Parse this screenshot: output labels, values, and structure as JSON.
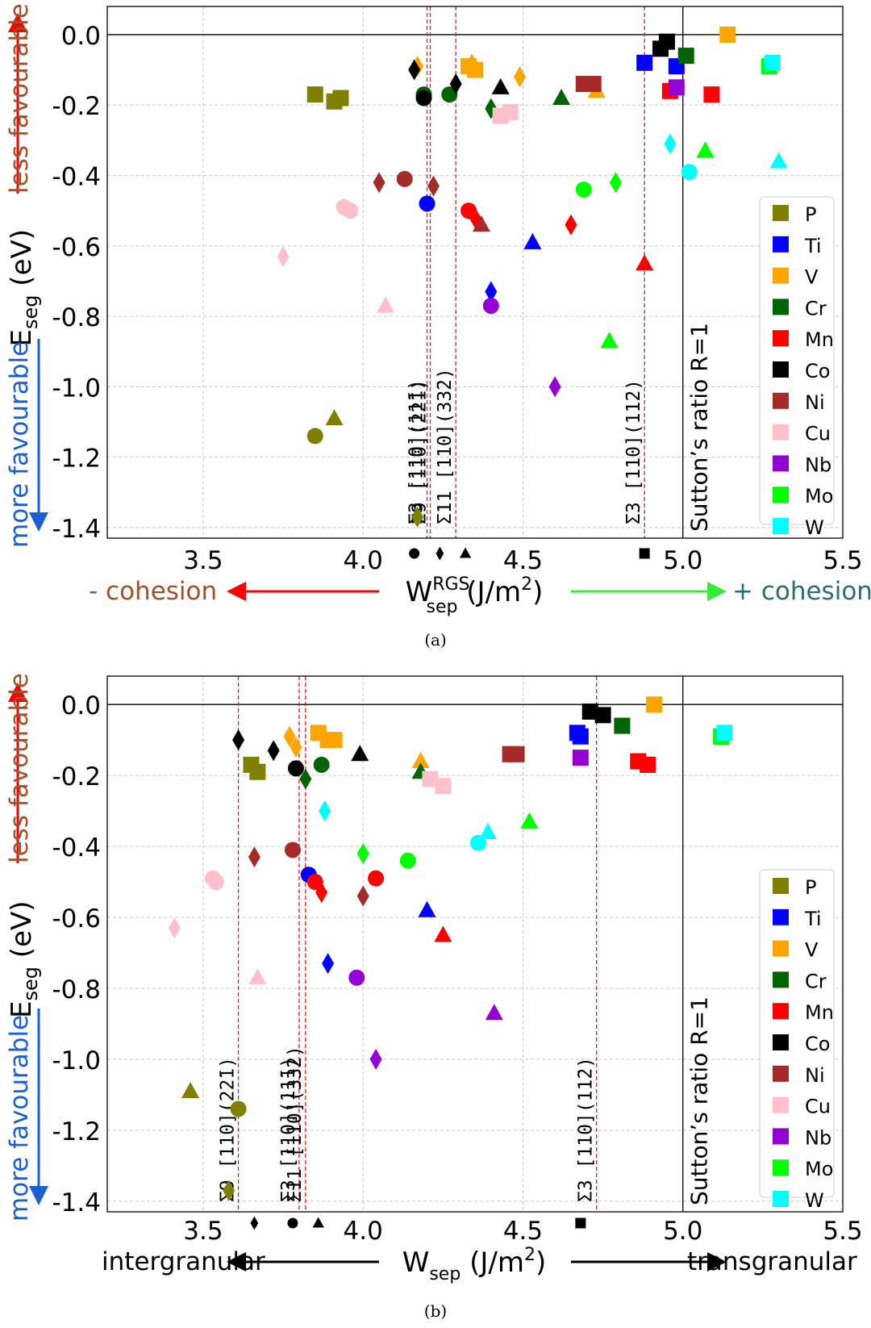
{
  "colors": {
    "P": "#808000",
    "Ti": "#0000ff",
    "V": "#ffa500",
    "Cr": "#006400",
    "Mn": "#ff0000",
    "Co": "#000000",
    "Ni": "#a52a2a",
    "Cu": "#ffc0cb",
    "Nb": "#9400d3",
    "Mo": "#00ff00",
    "W": "#00ffff"
  },
  "legend_items": [
    "P",
    "Ti",
    "V",
    "Cr",
    "Mn",
    "Co",
    "Ni",
    "Cu",
    "Nb",
    "Mo",
    "W"
  ],
  "chart_data": [
    {
      "type": "scatter",
      "caption": "(a)",
      "ylabel_main": "E",
      "ylabel_sub": "seg",
      "ylabel_unit": " (eV)",
      "xlabel_main": "W",
      "xlabel_sup": "RGS",
      "xlabel_sub": "sep",
      "xlabel_unit": " (J/m",
      "xlabel_pow": "2",
      "xlabel_close": ")",
      "left_arrow_label": "- cohesion",
      "right_arrow_label": "+ cohesion",
      "y_up_label": "less favourable",
      "y_down_label": "more favourable",
      "xlim": [
        3.2,
        5.5
      ],
      "ylim": [
        -1.43,
        0.08
      ],
      "xticks": [
        "3.5",
        "4.0",
        "4.5",
        "5.0",
        "5.5"
      ],
      "yticks": [
        "0.0",
        "-0.2",
        "-0.4",
        "-0.6",
        "-0.8",
        "-1.0",
        "-1.2",
        "-1.4"
      ],
      "sutton_x": 5.0,
      "sutton_label": "Sutton’s ratio R=1",
      "gb_lines": [
        {
          "x": 4.2,
          "label": "Σ3 [110](11̄1)",
          "marker": "circle",
          "marker_x": 4.16
        },
        {
          "x": 4.21,
          "label": "Σ9 [110](22̄1)",
          "marker": "diamond",
          "marker_x": 4.24
        },
        {
          "x": 4.29,
          "label": "Σ11 [110](33̄2)",
          "marker": "triangle",
          "marker_x": 4.32
        },
        {
          "x": 4.88,
          "label": "Σ3 [110](11̄2)",
          "marker": "square",
          "marker_x": 4.88
        }
      ],
      "points": [
        [
          "P",
          "square",
          3.85,
          -0.17
        ],
        [
          "P",
          "square",
          3.91,
          -0.19
        ],
        [
          "P",
          "square",
          3.93,
          -0.18
        ],
        [
          "P",
          "circle",
          3.85,
          -1.14
        ],
        [
          "P",
          "triangle",
          3.91,
          -1.09
        ],
        [
          "P",
          "diamond",
          4.17,
          -1.37
        ],
        [
          "Ti",
          "circle",
          4.2,
          -0.48
        ],
        [
          "Ti",
          "triangle",
          4.53,
          -0.59
        ],
        [
          "Ti",
          "diamond",
          4.4,
          -0.73
        ],
        [
          "Ti",
          "square",
          4.88,
          -0.08
        ],
        [
          "Ti",
          "square",
          4.98,
          -0.09
        ],
        [
          "V",
          "diamond",
          4.17,
          -0.09
        ],
        [
          "V",
          "square",
          4.33,
          -0.09
        ],
        [
          "V",
          "square",
          4.35,
          -0.1
        ],
        [
          "V",
          "triangle",
          4.34,
          -0.08
        ],
        [
          "V",
          "diamond",
          4.49,
          -0.12
        ],
        [
          "V",
          "triangle",
          4.73,
          -0.16
        ],
        [
          "V",
          "square",
          5.14,
          0.0
        ],
        [
          "Cr",
          "circle",
          4.19,
          -0.17
        ],
        [
          "Cr",
          "circle",
          4.27,
          -0.17
        ],
        [
          "Cr",
          "diamond",
          4.4,
          -0.21
        ],
        [
          "Cr",
          "triangle",
          4.62,
          -0.18
        ],
        [
          "Cr",
          "square",
          5.01,
          -0.06
        ],
        [
          "Mn",
          "circle",
          4.33,
          -0.5
        ],
        [
          "Mn",
          "diamond",
          4.35,
          -0.52
        ],
        [
          "Mn",
          "diamond",
          4.65,
          -0.54
        ],
        [
          "Mn",
          "triangle",
          4.88,
          -0.65
        ],
        [
          "Mn",
          "square",
          4.96,
          -0.16
        ],
        [
          "Mn",
          "square",
          5.09,
          -0.17
        ],
        [
          "Co",
          "diamond",
          4.16,
          -0.1
        ],
        [
          "Co",
          "circle",
          4.19,
          -0.18
        ],
        [
          "Co",
          "diamond",
          4.29,
          -0.14
        ],
        [
          "Co",
          "triangle",
          4.43,
          -0.15
        ],
        [
          "Co",
          "square",
          4.93,
          -0.04
        ],
        [
          "Co",
          "square",
          4.95,
          -0.02
        ],
        [
          "Ni",
          "diamond",
          4.05,
          -0.42
        ],
        [
          "Ni",
          "circle",
          4.13,
          -0.41
        ],
        [
          "Ni",
          "diamond",
          4.22,
          -0.43
        ],
        [
          "Ni",
          "triangle",
          4.37,
          -0.54
        ],
        [
          "Ni",
          "square",
          4.69,
          -0.14
        ],
        [
          "Ni",
          "square",
          4.72,
          -0.14
        ],
        [
          "Cu",
          "diamond",
          3.75,
          -0.63
        ],
        [
          "Cu",
          "circle",
          3.94,
          -0.49
        ],
        [
          "Cu",
          "circle",
          3.96,
          -0.5
        ],
        [
          "Cu",
          "triangle",
          4.07,
          -0.77
        ],
        [
          "Cu",
          "square",
          4.43,
          -0.23
        ],
        [
          "Cu",
          "square",
          4.46,
          -0.22
        ],
        [
          "Nb",
          "circle",
          4.4,
          -0.77
        ],
        [
          "Nb",
          "diamond",
          4.6,
          -1.0
        ],
        [
          "Nb",
          "square",
          4.98,
          -0.15
        ],
        [
          "Mo",
          "circle",
          4.69,
          -0.44
        ],
        [
          "Mo",
          "diamond",
          4.79,
          -0.42
        ],
        [
          "Mo",
          "triangle",
          4.77,
          -0.87
        ],
        [
          "Mo",
          "triangle",
          5.07,
          -0.33
        ],
        [
          "Mo",
          "square",
          5.27,
          -0.09
        ],
        [
          "W",
          "diamond",
          4.96,
          -0.31
        ],
        [
          "W",
          "circle",
          5.02,
          -0.39
        ],
        [
          "W",
          "square",
          5.28,
          -0.08
        ],
        [
          "W",
          "triangle",
          5.3,
          -0.36
        ]
      ]
    },
    {
      "type": "scatter",
      "caption": "(b)",
      "ylabel_main": "E",
      "ylabel_sub": "seg",
      "ylabel_unit": " (eV)",
      "xlabel_main": "W",
      "xlabel_sup": "",
      "xlabel_sub": "sep",
      "xlabel_unit": " (J/m",
      "xlabel_pow": "2",
      "xlabel_close": ")",
      "left_arrow_label": "intergranular",
      "right_arrow_label": "transgranular",
      "y_up_label": "less favourable",
      "y_down_label": "more favourable",
      "xlim": [
        3.2,
        5.5
      ],
      "ylim": [
        -1.43,
        0.08
      ],
      "xticks": [
        "3.5",
        "4.0",
        "4.5",
        "5.0",
        "5.5"
      ],
      "yticks": [
        "0.0",
        "-0.2",
        "-0.4",
        "-0.6",
        "-0.8",
        "-1.0",
        "-1.2",
        "-1.4"
      ],
      "sutton_x": 5.0,
      "sutton_label": "Sutton’s ratio R=1",
      "gb_lines": [
        {
          "x": 3.61,
          "label": "Σ9 [110](22̄1)",
          "marker": "diamond",
          "marker_x": 3.66
        },
        {
          "x": 3.8,
          "label": "Σ3 [110](11̄1)",
          "marker": "circle",
          "marker_x": 3.78
        },
        {
          "x": 3.82,
          "label": "Σ11 [110](33̄2)",
          "marker": "triangle",
          "marker_x": 3.86
        },
        {
          "x": 4.73,
          "label": "Σ3 [110](11̄2)",
          "marker": "square",
          "marker_x": 4.68
        }
      ],
      "points": [
        [
          "P",
          "square",
          3.65,
          -0.17
        ],
        [
          "P",
          "square",
          3.67,
          -0.19
        ],
        [
          "P",
          "triangle",
          3.46,
          -1.09
        ],
        [
          "P",
          "circle",
          3.61,
          -1.14
        ],
        [
          "P",
          "diamond",
          3.58,
          -1.37
        ],
        [
          "Ti",
          "circle",
          3.83,
          -0.48
        ],
        [
          "Ti",
          "diamond",
          3.89,
          -0.73
        ],
        [
          "Ti",
          "triangle",
          4.2,
          -0.58
        ],
        [
          "Ti",
          "square",
          4.67,
          -0.08
        ],
        [
          "Ti",
          "square",
          4.68,
          -0.09
        ],
        [
          "V",
          "diamond",
          3.77,
          -0.09
        ],
        [
          "V",
          "diamond",
          3.79,
          -0.12
        ],
        [
          "V",
          "square",
          3.86,
          -0.08
        ],
        [
          "V",
          "square",
          3.89,
          -0.1
        ],
        [
          "V",
          "square",
          3.91,
          -0.1
        ],
        [
          "V",
          "triangle",
          4.18,
          -0.16
        ],
        [
          "V",
          "square",
          4.91,
          0.0
        ],
        [
          "Cr",
          "diamond",
          3.82,
          -0.21
        ],
        [
          "Cr",
          "circle",
          3.87,
          -0.17
        ],
        [
          "Cr",
          "triangle",
          4.18,
          -0.19
        ],
        [
          "Cr",
          "square",
          4.81,
          -0.06
        ],
        [
          "Cr",
          "square",
          5.12,
          -0.09
        ],
        [
          "Mn",
          "circle",
          3.85,
          -0.5
        ],
        [
          "Mn",
          "diamond",
          3.87,
          -0.53
        ],
        [
          "Mn",
          "circle",
          4.04,
          -0.49
        ],
        [
          "Mn",
          "triangle",
          4.25,
          -0.65
        ],
        [
          "Mn",
          "square",
          4.86,
          -0.16
        ],
        [
          "Mn",
          "square",
          4.89,
          -0.17
        ],
        [
          "Co",
          "diamond",
          3.61,
          -0.1
        ],
        [
          "Co",
          "diamond",
          3.72,
          -0.13
        ],
        [
          "Co",
          "circle",
          3.79,
          -0.18
        ],
        [
          "Co",
          "triangle",
          3.99,
          -0.14
        ],
        [
          "Co",
          "square",
          4.71,
          -0.02
        ],
        [
          "Co",
          "square",
          4.75,
          -0.03
        ],
        [
          "Ni",
          "diamond",
          3.66,
          -0.43
        ],
        [
          "Ni",
          "circle",
          3.78,
          -0.41
        ],
        [
          "Ni",
          "diamond",
          4.0,
          -0.54
        ],
        [
          "Ni",
          "square",
          4.46,
          -0.14
        ],
        [
          "Ni",
          "square",
          4.48,
          -0.14
        ],
        [
          "Cu",
          "diamond",
          3.41,
          -0.63
        ],
        [
          "Cu",
          "circle",
          3.53,
          -0.49
        ],
        [
          "Cu",
          "circle",
          3.54,
          -0.5
        ],
        [
          "Cu",
          "triangle",
          3.67,
          -0.77
        ],
        [
          "Cu",
          "square",
          4.21,
          -0.21
        ],
        [
          "Cu",
          "square",
          4.25,
          -0.23
        ],
        [
          "Nb",
          "circle",
          3.98,
          -0.77
        ],
        [
          "Nb",
          "diamond",
          4.04,
          -1.0
        ],
        [
          "Nb",
          "triangle",
          4.41,
          -0.87
        ],
        [
          "Nb",
          "square",
          4.68,
          -0.15
        ],
        [
          "Mo",
          "diamond",
          4.0,
          -0.42
        ],
        [
          "Mo",
          "circle",
          4.14,
          -0.44
        ],
        [
          "Mo",
          "triangle",
          4.52,
          -0.33
        ],
        [
          "Mo",
          "square",
          5.12,
          -0.09
        ],
        [
          "W",
          "diamond",
          3.88,
          -0.3
        ],
        [
          "W",
          "circle",
          4.36,
          -0.39
        ],
        [
          "W",
          "triangle",
          4.39,
          -0.36
        ],
        [
          "W",
          "square",
          5.13,
          -0.08
        ]
      ]
    }
  ]
}
